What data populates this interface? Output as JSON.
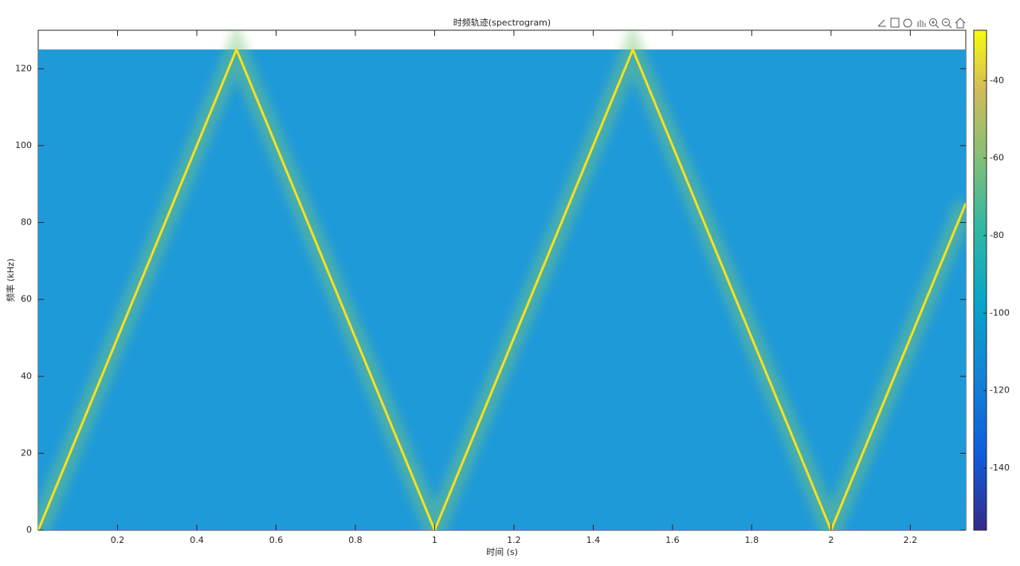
{
  "chart_data": {
    "type": "spectrogram",
    "title": "时频轨迹(spectrogram)",
    "x_label": "时间 (s)",
    "y_label": "频率 (kHz)",
    "xlim": [
      0,
      2.34
    ],
    "xticks": [
      0.2,
      0.4,
      0.6,
      0.8,
      1,
      1.2,
      1.4,
      1.6,
      1.8,
      2,
      2.2
    ],
    "ylim": [
      0,
      130
    ],
    "yticks": [
      0,
      20,
      40,
      60,
      80,
      100,
      120
    ],
    "image_ylim": [
      0,
      125
    ],
    "background_color": "#1f9ad9",
    "ridge": {
      "color": "#f5e020",
      "x": [
        0,
        0.5,
        1,
        1.5,
        2,
        2.34
      ],
      "y": [
        0,
        125,
        0,
        125,
        0,
        85
      ]
    },
    "colorbar": {
      "clim": [
        -156,
        -27
      ],
      "ticks": [
        -140,
        -120,
        -100,
        -80,
        -60,
        -40
      ]
    }
  }
}
